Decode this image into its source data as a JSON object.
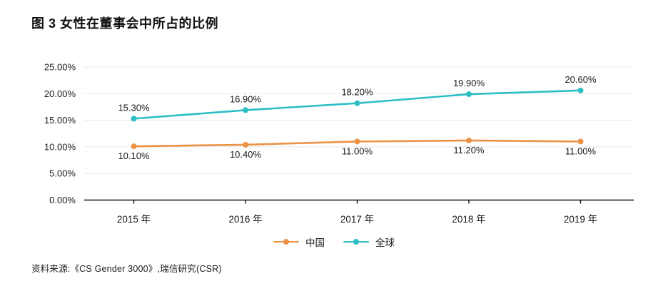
{
  "title": "图 3  女性在董事会中所占的比例",
  "source": "资料来源:《CS Gender 3000》,瑞信研究(CSR)",
  "colors": {
    "china": "#EB9245",
    "global": "#2CBEC5",
    "grid": "#E8E8E8",
    "axis": "#111111",
    "text": "#1A1A1A"
  },
  "chart_data": {
    "type": "line",
    "title": "图 3 女性在董事会中所占的比例",
    "categories": [
      "2015 年",
      "2016 年",
      "2017 年",
      "2018 年",
      "2019 年"
    ],
    "series": [
      {
        "key": "china",
        "name": "中国",
        "values": [
          10.1,
          10.4,
          11.0,
          11.2,
          11.0
        ],
        "labels": [
          "10.10%",
          "10.40%",
          "11.00%",
          "11.20%",
          "11.00%"
        ],
        "label_position": "below"
      },
      {
        "key": "global",
        "name": "全球",
        "values": [
          15.3,
          16.9,
          18.2,
          19.9,
          20.6
        ],
        "labels": [
          "15.30%",
          "16.90%",
          "18.20%",
          "19.90%",
          "20.60%"
        ],
        "label_position": "above"
      }
    ],
    "y_ticks": [
      "0.00%",
      "5.00%",
      "10.00%",
      "15.00%",
      "20.00%",
      "25.00%"
    ],
    "y_tick_values": [
      0,
      5,
      10,
      15,
      20,
      25
    ],
    "ylim": [
      0,
      25
    ],
    "xlabel": "",
    "ylabel": "",
    "grid": true,
    "legend_position": "bottom"
  }
}
